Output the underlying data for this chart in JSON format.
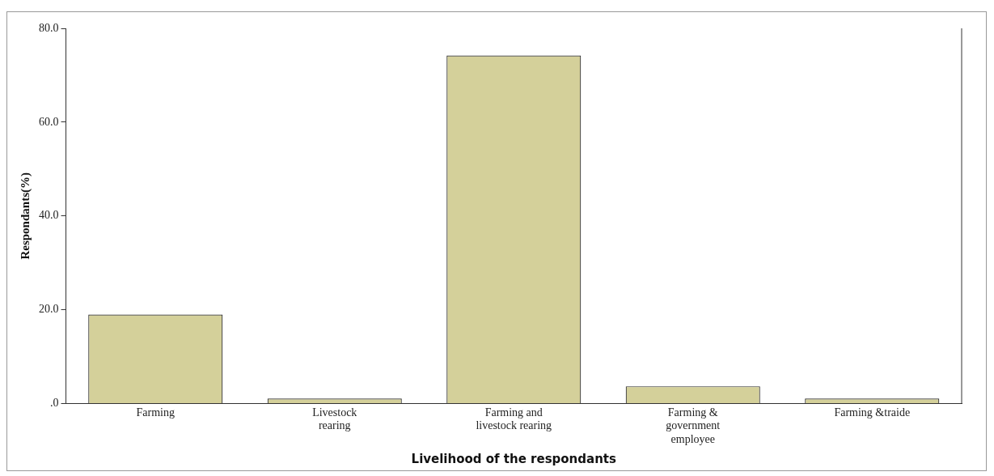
{
  "chart_data": {
    "type": "bar",
    "xlabel": "Livelihood of the respondants",
    "ylabel": "Respondants(%)",
    "categories": [
      "Farming",
      "Livestock\nrearing",
      "Farming and\nlivestock rearing",
      "Farming &\ngovernment\nemployee",
      "Farming &traide"
    ],
    "values": [
      19.0,
      1.1,
      74.2,
      3.7,
      1.1
    ],
    "color": "#d4d09a",
    "ylim": [
      0,
      80
    ],
    "yticks": [
      {
        "value": 0,
        "label": ".0"
      },
      {
        "value": 20,
        "label": "20.0"
      },
      {
        "value": 40,
        "label": "40.0"
      },
      {
        "value": 60,
        "label": "60.0"
      },
      {
        "value": 80,
        "label": "80.0"
      }
    ],
    "grid": false,
    "legend": false
  }
}
